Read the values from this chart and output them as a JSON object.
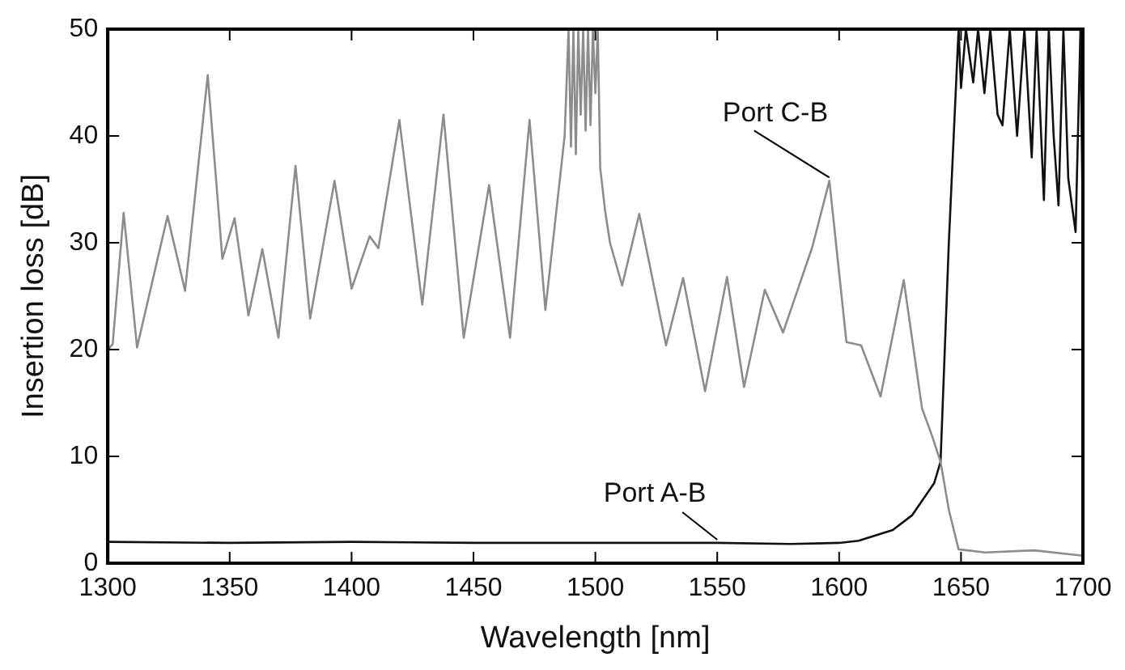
{
  "chart_data": {
    "type": "line",
    "xlabel": "Wavelength [nm]",
    "ylabel": "Insertion loss [dB]",
    "xlim": [
      1300,
      1700
    ],
    "xticks": [
      1300,
      1350,
      1400,
      1450,
      1500,
      1550,
      1600,
      1650,
      1700
    ],
    "ylim": [
      0,
      50
    ],
    "yticks": [
      0,
      10,
      20,
      30,
      40,
      50
    ],
    "grid": false,
    "legend": false,
    "marker": "none",
    "line_style": "solid",
    "series": [
      {
        "name": "Port C-B",
        "color": "#8c8c8c",
        "x": [
          1300,
          1302,
          1306.5,
          1312,
          1324.5,
          1331.7,
          1341,
          1347,
          1352,
          1357.7,
          1363.4,
          1370,
          1377,
          1383,
          1393,
          1400,
          1407.4,
          1411,
          1419.6,
          1429,
          1437.7,
          1446,
          1456.4,
          1465,
          1473,
          1479.5,
          1487.4,
          1489,
          1490,
          1491,
          1492,
          1493,
          1494,
          1495,
          1496,
          1497,
          1498,
          1499,
          1500,
          1501,
          1502,
          1504,
          1506,
          1511,
          1518,
          1529,
          1536,
          1545,
          1554,
          1561,
          1569.5,
          1577,
          1589,
          1596,
          1603,
          1609,
          1617,
          1626.5,
          1634,
          1638,
          1641.6,
          1645,
          1649,
          1660,
          1680,
          1700
        ],
        "values": [
          20,
          20.5,
          32.8,
          20.2,
          32.5,
          25.5,
          45.7,
          28.5,
          32.3,
          23.2,
          29.4,
          21.1,
          37.2,
          22.9,
          35.8,
          25.7,
          30.6,
          29.5,
          41.5,
          24.2,
          42,
          21.1,
          35.4,
          21.1,
          41.5,
          23.7,
          40,
          50,
          39,
          50,
          38.3,
          50,
          42,
          50,
          40.5,
          50,
          41,
          50,
          44,
          50,
          37,
          33,
          30,
          26,
          32.7,
          20.4,
          26.7,
          16.1,
          26.8,
          16.5,
          25.6,
          21.6,
          29.6,
          35.8,
          20.7,
          20.4,
          15.6,
          26.5,
          14.5,
          12,
          9.5,
          5,
          1.3,
          1,
          1.2,
          0.7
        ]
      },
      {
        "name": "Port A-B",
        "color": "#111111",
        "x": [
          1300,
          1350,
          1400,
          1450,
          1500,
          1550,
          1580,
          1600,
          1608,
          1622,
          1630,
          1639,
          1641.6,
          1645,
          1649,
          1650,
          1652,
          1655,
          1657,
          1659.6,
          1662,
          1665,
          1667,
          1670,
          1673,
          1676,
          1679,
          1681,
          1684,
          1686,
          1688,
          1690,
          1692,
          1694,
          1697,
          1699,
          1700
        ],
        "values": [
          2,
          1.9,
          2,
          1.9,
          1.9,
          1.9,
          1.8,
          1.9,
          2.1,
          3.1,
          4.5,
          7.5,
          9.5,
          30,
          50,
          44.5,
          50,
          45,
          50,
          44,
          50,
          42,
          41,
          50,
          40,
          50,
          38,
          50,
          34,
          50,
          40,
          33.5,
          50,
          36,
          31,
          50,
          31
        ]
      }
    ]
  }
}
